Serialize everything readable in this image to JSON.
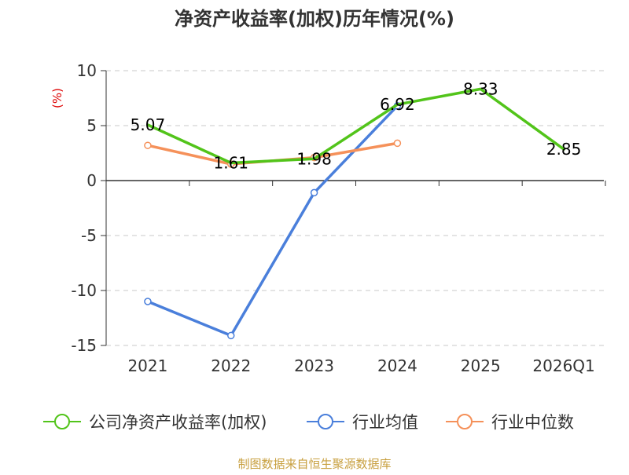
{
  "chart_data": {
    "type": "line",
    "title": "净资产收益率(加权)历年情况(%)",
    "ylabel": "(%)",
    "xlabel": "",
    "categories": [
      "2021",
      "2022",
      "2023",
      "2024",
      "2025",
      "2026Q1"
    ],
    "ylim": [
      -15,
      10
    ],
    "yticks": [
      10,
      5,
      0,
      -5,
      -10,
      -15
    ],
    "grid": true,
    "series": [
      {
        "name": "公司净资产收益率(加权)",
        "color": "#52c41a",
        "values": [
          5.07,
          1.61,
          1.98,
          6.92,
          8.33,
          2.85
        ],
        "labels": [
          "5.07",
          "1.61",
          "1.98",
          "6.92",
          "8.33",
          "2.85"
        ],
        "show_markers": false
      },
      {
        "name": "行业均值",
        "color": "#4a7fdb",
        "values": [
          -11.0,
          -14.1,
          -1.1,
          6.8,
          null,
          null
        ],
        "show_markers": true
      },
      {
        "name": "行业中位数",
        "color": "#f5915a",
        "values": [
          3.2,
          1.5,
          2.1,
          3.4,
          null,
          null
        ],
        "show_markers": true
      }
    ],
    "legend_position": "bottom"
  },
  "source_note": "制图数据来自恒生聚源数据库"
}
